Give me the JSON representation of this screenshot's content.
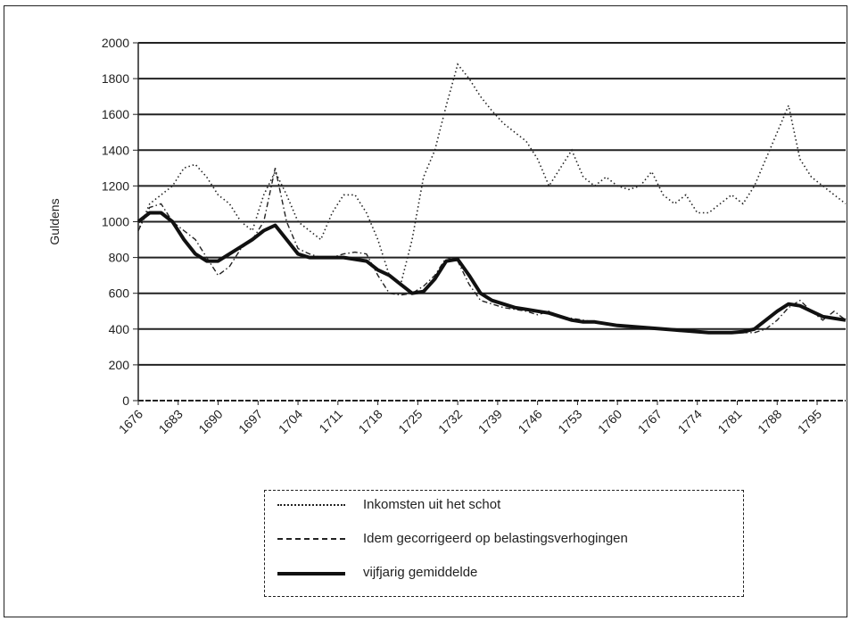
{
  "chart_data": {
    "type": "line",
    "ylabel": "Guldens",
    "ylim": [
      0,
      2000
    ],
    "yticks": [
      "0",
      "200",
      "400",
      "600",
      "800",
      "1000",
      "1200",
      "1400",
      "1600",
      "1800",
      "2000"
    ],
    "xlim": [
      1676,
      1800
    ],
    "xticks": [
      "1676",
      "1683",
      "1690",
      "1697",
      "1704",
      "1711",
      "1718",
      "1725",
      "1732",
      "1739",
      "1746",
      "1753",
      "1760",
      "1767",
      "1774",
      "1781",
      "1788",
      "1795"
    ],
    "grid": true,
    "legend_position": "bottom",
    "series": [
      {
        "name": "Inkomsten uit het schot",
        "style": "dotted",
        "x": [
          1676,
          1678,
          1680,
          1682,
          1684,
          1686,
          1688,
          1690,
          1692,
          1694,
          1696,
          1698,
          1700,
          1702,
          1704,
          1706,
          1708,
          1710,
          1712,
          1714,
          1716,
          1718,
          1720,
          1722,
          1724,
          1726,
          1728,
          1730,
          1732,
          1734,
          1736,
          1738,
          1740,
          1742,
          1744,
          1746,
          1748,
          1750,
          1752,
          1754,
          1756,
          1758,
          1760,
          1762,
          1764,
          1766,
          1768,
          1770,
          1772,
          1774,
          1776,
          1778,
          1780,
          1782,
          1784,
          1786,
          1788,
          1790,
          1792,
          1794,
          1796,
          1798,
          1800
        ],
        "values": [
          950,
          1100,
          1150,
          1200,
          1300,
          1320,
          1250,
          1150,
          1100,
          1000,
          950,
          1150,
          1280,
          1150,
          1000,
          950,
          900,
          1050,
          1150,
          1150,
          1050,
          900,
          700,
          650,
          900,
          1250,
          1400,
          1650,
          1880,
          1800,
          1700,
          1620,
          1550,
          1500,
          1450,
          1350,
          1200,
          1300,
          1400,
          1250,
          1200,
          1250,
          1200,
          1180,
          1200,
          1280,
          1150,
          1100,
          1150,
          1050,
          1050,
          1100,
          1150,
          1100,
          1200,
          1350,
          1500,
          1650,
          1350,
          1250,
          1200,
          1150,
          1100
        ]
      },
      {
        "name": "Idem gecorrigeerd op belastingsverhogingen",
        "style": "dash-dot",
        "x": [
          1676,
          1678,
          1680,
          1682,
          1684,
          1686,
          1688,
          1690,
          1692,
          1694,
          1696,
          1698,
          1700,
          1702,
          1704,
          1706,
          1708,
          1710,
          1712,
          1714,
          1716,
          1718,
          1720,
          1722,
          1724,
          1726,
          1728,
          1730,
          1732,
          1734,
          1736,
          1738,
          1740,
          1742,
          1744,
          1746,
          1748,
          1750,
          1752,
          1754,
          1756,
          1758,
          1760,
          1762,
          1764,
          1766,
          1768,
          1770,
          1772,
          1774,
          1776,
          1778,
          1780,
          1782,
          1784,
          1786,
          1788,
          1790,
          1792,
          1794,
          1796,
          1798,
          1800
        ],
        "values": [
          950,
          1080,
          1100,
          1000,
          950,
          900,
          800,
          700,
          750,
          850,
          900,
          1000,
          1300,
          1000,
          850,
          820,
          800,
          800,
          820,
          830,
          820,
          700,
          600,
          590,
          600,
          640,
          700,
          800,
          780,
          650,
          560,
          540,
          520,
          510,
          500,
          480,
          500,
          470,
          460,
          450,
          440,
          430,
          420,
          410,
          410,
          400,
          400,
          400,
          395,
          390,
          380,
          380,
          380,
          380,
          380,
          400,
          450,
          520,
          560,
          500,
          450,
          500,
          450
        ]
      },
      {
        "name": "vijfjarig gemiddelde",
        "style": "solid-thick",
        "x": [
          1676,
          1678,
          1680,
          1682,
          1684,
          1686,
          1688,
          1690,
          1692,
          1694,
          1696,
          1698,
          1700,
          1702,
          1704,
          1706,
          1708,
          1710,
          1712,
          1714,
          1716,
          1718,
          1720,
          1722,
          1724,
          1726,
          1728,
          1730,
          1732,
          1734,
          1736,
          1738,
          1740,
          1742,
          1744,
          1746,
          1748,
          1750,
          1752,
          1754,
          1756,
          1758,
          1760,
          1762,
          1764,
          1766,
          1768,
          1770,
          1772,
          1774,
          1776,
          1778,
          1780,
          1782,
          1784,
          1786,
          1788,
          1790,
          1792,
          1794,
          1796,
          1798,
          1800
        ],
        "values": [
          1000,
          1050,
          1050,
          1000,
          900,
          820,
          780,
          780,
          820,
          860,
          900,
          950,
          980,
          900,
          820,
          800,
          800,
          800,
          800,
          790,
          780,
          730,
          700,
          650,
          600,
          610,
          680,
          780,
          790,
          700,
          600,
          560,
          540,
          520,
          510,
          500,
          490,
          470,
          450,
          440,
          440,
          430,
          420,
          415,
          410,
          405,
          400,
          395,
          390,
          385,
          380,
          380,
          380,
          385,
          400,
          450,
          500,
          540,
          530,
          500,
          470,
          460,
          450
        ]
      }
    ]
  }
}
